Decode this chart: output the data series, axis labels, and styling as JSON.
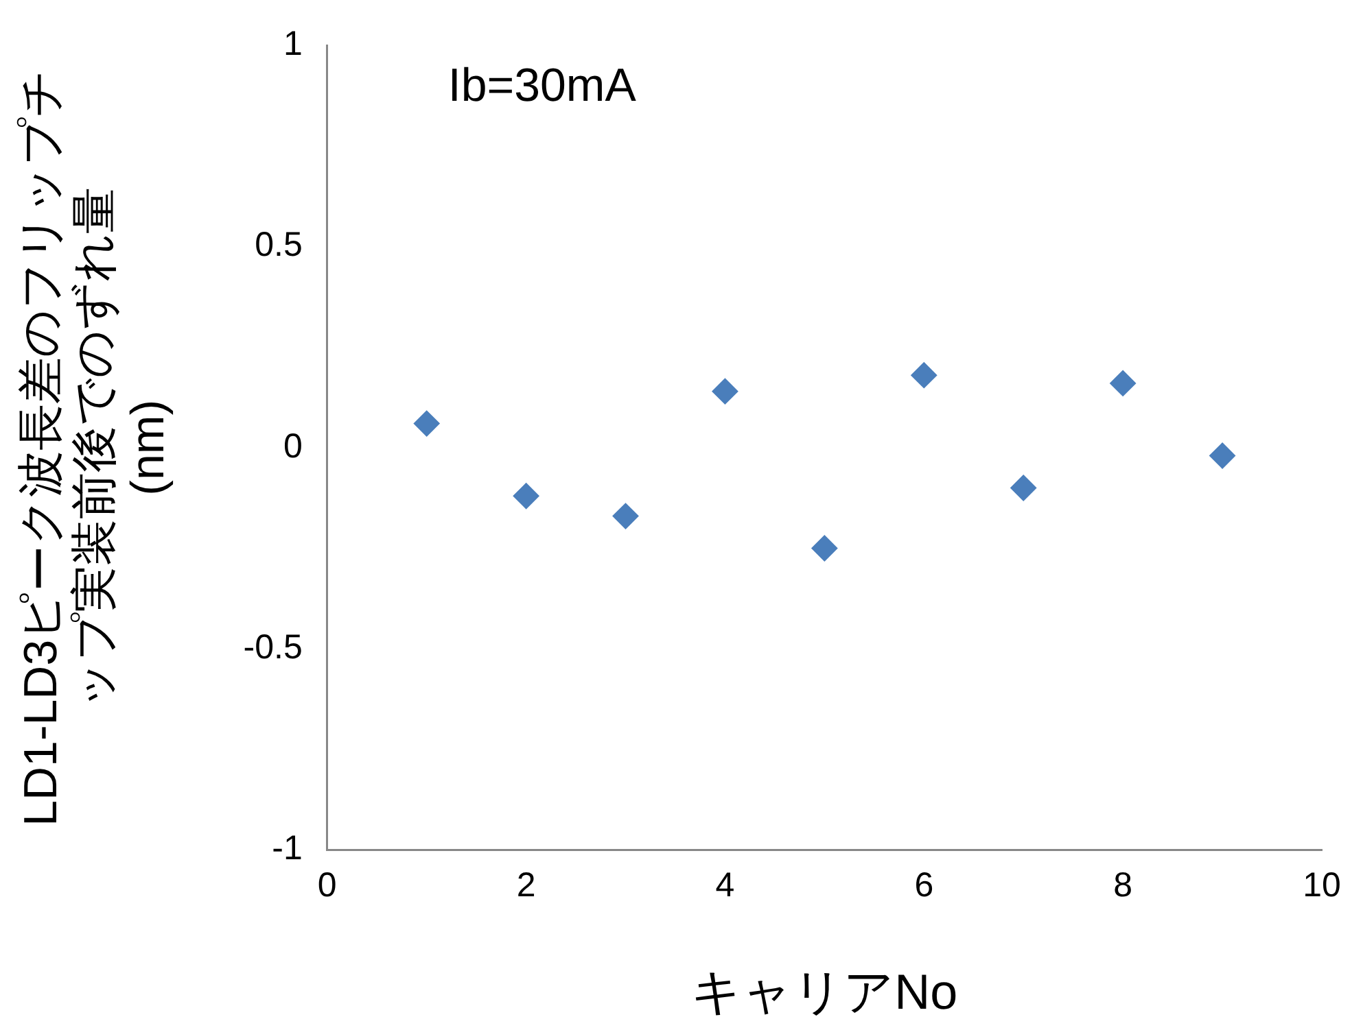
{
  "chart_data": {
    "type": "scatter",
    "xlabel": "キャリアNo",
    "ylabel": "LD1-LD3ピーク波長差のフリップチップ実装前後でのずれ量 (nm)",
    "annotations": [
      "Ib=30mA"
    ],
    "x": [
      1,
      2,
      3,
      4,
      5,
      6,
      7,
      8,
      9
    ],
    "series": [
      {
        "color": "#4a7ebb",
        "values": [
          0.06,
          -0.12,
          -0.17,
          0.14,
          -0.25,
          0.18,
          -0.1,
          0.16,
          -0.02
        ]
      }
    ],
    "xlim": [
      0,
      10
    ],
    "xticks": [
      0,
      2,
      4,
      6,
      8,
      10
    ],
    "ylim": [
      -1,
      1
    ],
    "yticks": [
      -1,
      -0.5,
      0,
      0.5,
      1
    ],
    "grid": false,
    "legend": false,
    "marker": "diamond"
  }
}
